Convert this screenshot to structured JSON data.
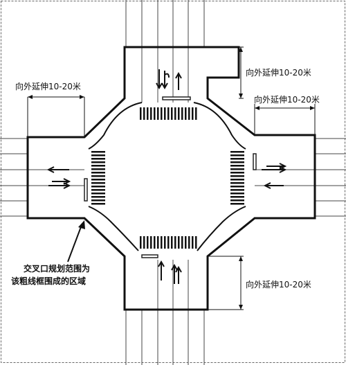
{
  "labels": {
    "ext_top_left": "向外延伸10-20米",
    "ext_top_right_vertical": "向外延伸10-20米",
    "ext_right_horizontal": "向外延伸10-20米",
    "ext_bottom_right": "向外延伸10-20米"
  },
  "note": {
    "line1": "交叉口规划范围为",
    "line2": "该粗线框围成的区域"
  },
  "colors": {
    "ink": "#111111",
    "background": "#ffffff"
  }
}
